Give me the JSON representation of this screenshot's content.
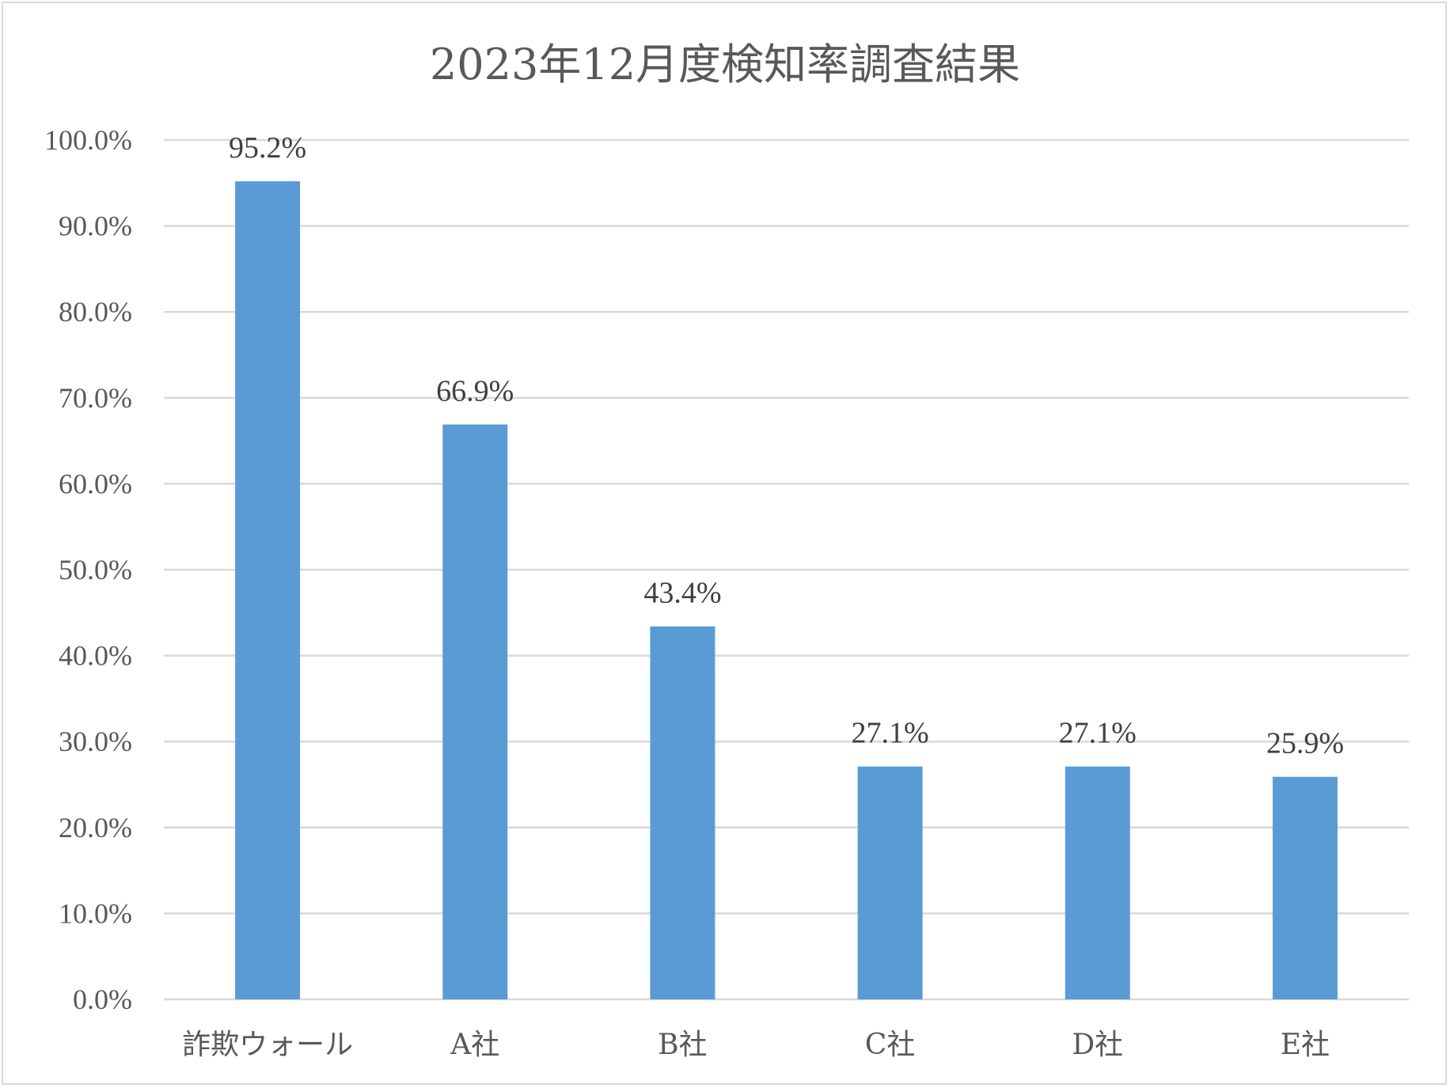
{
  "chart_data": {
    "type": "bar",
    "title": "2023年12月度検知率調査結果",
    "categories": [
      "詐欺ウォール",
      "A社",
      "B社",
      "C社",
      "D社",
      "E社"
    ],
    "values": [
      95.2,
      66.9,
      43.4,
      27.1,
      27.1,
      25.9
    ],
    "data_labels": [
      "95.2%",
      "66.9%",
      "43.4%",
      "27.1%",
      "27.1%",
      "25.9%"
    ],
    "ylim": [
      0,
      100
    ],
    "ytick_step": 10,
    "ytick_labels": [
      "0.0%",
      "10.0%",
      "20.0%",
      "30.0%",
      "40.0%",
      "50.0%",
      "60.0%",
      "70.0%",
      "80.0%",
      "90.0%",
      "100.0%"
    ],
    "grid": true,
    "legend": "none",
    "bar_color": "#5b9bd5"
  }
}
